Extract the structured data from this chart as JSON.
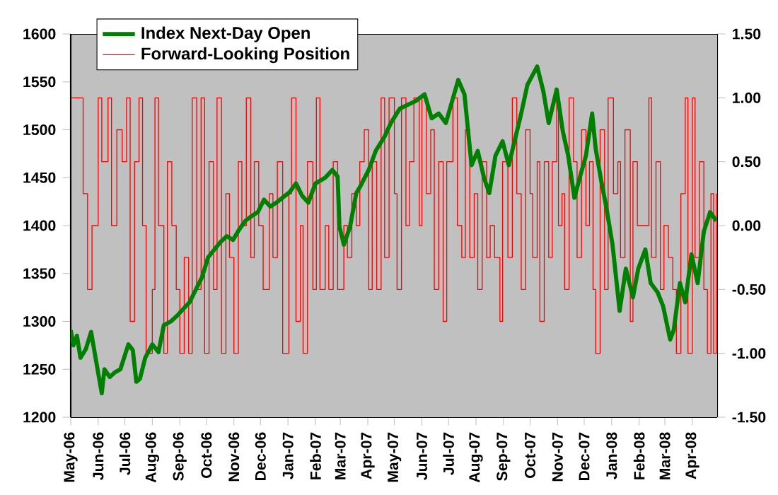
{
  "chart_data": {
    "type": "line",
    "xlim": [
      "2006-05-01",
      "2008-04-29"
    ],
    "xticks": [
      {
        "value": "2006-05-01",
        "label": "May-06"
      },
      {
        "value": "2006-06-01",
        "label": "Jun-06"
      },
      {
        "value": "2006-07-01",
        "label": "Jul-06"
      },
      {
        "value": "2006-08-01",
        "label": "Aug-06"
      },
      {
        "value": "2006-09-01",
        "label": "Sep-06"
      },
      {
        "value": "2006-10-01",
        "label": "Oct-06"
      },
      {
        "value": "2006-11-01",
        "label": "Nov-06"
      },
      {
        "value": "2006-12-01",
        "label": "Dec-06"
      },
      {
        "value": "2007-01-01",
        "label": "Jan-07"
      },
      {
        "value": "2007-02-01",
        "label": "Feb-07"
      },
      {
        "value": "2007-03-01",
        "label": "Mar-07"
      },
      {
        "value": "2007-04-01",
        "label": "Apr-07"
      },
      {
        "value": "2007-05-01",
        "label": "May-07"
      },
      {
        "value": "2007-06-01",
        "label": "Jun-07"
      },
      {
        "value": "2007-07-01",
        "label": "Jul-07"
      },
      {
        "value": "2007-08-01",
        "label": "Aug-07"
      },
      {
        "value": "2007-09-01",
        "label": "Sep-07"
      },
      {
        "value": "2007-10-01",
        "label": "Oct-07"
      },
      {
        "value": "2007-11-01",
        "label": "Nov-07"
      },
      {
        "value": "2007-12-01",
        "label": "Dec-07"
      },
      {
        "value": "2008-01-01",
        "label": "Jan-08"
      },
      {
        "value": "2008-02-01",
        "label": "Feb-08"
      },
      {
        "value": "2008-03-01",
        "label": "Mar-08"
      },
      {
        "value": "2008-04-01",
        "label": "Apr-08"
      }
    ],
    "ylim": [
      1200,
      1600
    ],
    "yticks": [
      1200,
      1250,
      1300,
      1350,
      1400,
      1450,
      1500,
      1550,
      1600
    ],
    "y2lim": [
      -1.5,
      1.5
    ],
    "y2ticks": [
      {
        "value": -1.5,
        "label": "-1.50"
      },
      {
        "value": -1,
        "label": "-1.00"
      },
      {
        "value": -0.5,
        "label": "-0.50"
      },
      {
        "value": 0,
        "label": "0.00"
      },
      {
        "value": 0.5,
        "label": "0.50"
      },
      {
        "value": 1,
        "label": "1.00"
      },
      {
        "value": 1.5,
        "label": "1.50"
      }
    ],
    "legend": "top left",
    "series": [
      {
        "name": "Index Next-Day Open",
        "color": "#008000",
        "axis": "y",
        "x": [
          "2006-05-01",
          "2006-05-04",
          "2006-05-08",
          "2006-05-12",
          "2006-05-18",
          "2006-05-24",
          "2006-05-29",
          "2006-06-05",
          "2006-06-08",
          "2006-06-14",
          "2006-06-20",
          "2006-06-26",
          "2006-07-05",
          "2006-07-10",
          "2006-07-14",
          "2006-07-18",
          "2006-07-24",
          "2006-08-01",
          "2006-08-08",
          "2006-08-14",
          "2006-08-22",
          "2006-08-29",
          "2006-09-05",
          "2006-09-12",
          "2006-09-19",
          "2006-09-26",
          "2006-10-03",
          "2006-10-10",
          "2006-10-17",
          "2006-10-24",
          "2006-10-31",
          "2006-11-07",
          "2006-11-14",
          "2006-11-21",
          "2006-11-28",
          "2006-12-05",
          "2006-12-12",
          "2006-12-19",
          "2006-12-27",
          "2007-01-03",
          "2007-01-10",
          "2007-01-17",
          "2007-01-24",
          "2007-02-01",
          "2007-02-12",
          "2007-02-20",
          "2007-02-26",
          "2007-02-28",
          "2007-03-05",
          "2007-03-12",
          "2007-03-19",
          "2007-03-23",
          "2007-04-02",
          "2007-04-10",
          "2007-04-20",
          "2007-04-27",
          "2007-05-07",
          "2007-05-16",
          "2007-05-25",
          "2007-06-04",
          "2007-06-12",
          "2007-06-20",
          "2007-06-28",
          "2007-07-12",
          "2007-07-19",
          "2007-07-27",
          "2007-08-03",
          "2007-08-10",
          "2007-08-16",
          "2007-08-23",
          "2007-08-31",
          "2007-09-07",
          "2007-09-14",
          "2007-09-21",
          "2007-09-28",
          "2007-10-09",
          "2007-10-16",
          "2007-10-22",
          "2007-10-31",
          "2007-11-07",
          "2007-11-13",
          "2007-11-20",
          "2007-11-26",
          "2007-12-03",
          "2007-12-10",
          "2007-12-14",
          "2007-12-20",
          "2007-12-26",
          "2008-01-02",
          "2008-01-10",
          "2008-01-17",
          "2008-01-25",
          "2008-01-31",
          "2008-02-08",
          "2008-02-14",
          "2008-02-22",
          "2008-02-28",
          "2008-03-07",
          "2008-03-11",
          "2008-03-18",
          "2008-03-24",
          "2008-03-31",
          "2008-04-07",
          "2008-04-14",
          "2008-04-21",
          "2008-04-28"
        ],
        "values": [
          1291,
          1275,
          1285,
          1262,
          1271,
          1289,
          1262,
          1225,
          1250,
          1242,
          1247,
          1250,
          1276,
          1270,
          1237,
          1240,
          1262,
          1276,
          1268,
          1296,
          1300,
          1306,
          1313,
          1320,
          1333,
          1346,
          1367,
          1375,
          1383,
          1389,
          1385,
          1396,
          1405,
          1410,
          1414,
          1427,
          1420,
          1424,
          1430,
          1435,
          1444,
          1431,
          1424,
          1444,
          1450,
          1458,
          1451,
          1399,
          1380,
          1399,
          1434,
          1440,
          1458,
          1478,
          1493,
          1507,
          1522,
          1526,
          1530,
          1537,
          1512,
          1517,
          1507,
          1552,
          1537,
          1463,
          1478,
          1450,
          1434,
          1473,
          1488,
          1463,
          1490,
          1517,
          1547,
          1566,
          1540,
          1507,
          1542,
          1498,
          1473,
          1429,
          1450,
          1473,
          1517,
          1480,
          1448,
          1419,
          1380,
          1311,
          1355,
          1325,
          1355,
          1375,
          1340,
          1330,
          1316,
          1281,
          1291,
          1340,
          1320,
          1370,
          1340,
          1394,
          1414,
          1405
        ]
      },
      {
        "name": "Forward-Looking Position",
        "color": "#ff0000",
        "type": "step",
        "axis": "y2",
        "x": [
          "2006-05-01",
          "2006-05-15",
          "2006-05-20",
          "2006-05-25",
          "2006-06-01",
          "2006-06-05",
          "2006-06-12",
          "2006-06-16",
          "2006-06-22",
          "2006-06-28",
          "2006-07-03",
          "2006-07-07",
          "2006-07-12",
          "2006-07-17",
          "2006-07-21",
          "2006-07-25",
          "2006-08-01",
          "2006-08-04",
          "2006-08-08",
          "2006-08-14",
          "2006-08-18",
          "2006-08-23",
          "2006-08-28",
          "2006-09-01",
          "2006-09-06",
          "2006-09-11",
          "2006-09-15",
          "2006-09-20",
          "2006-09-25",
          "2006-09-29",
          "2006-10-04",
          "2006-10-09",
          "2006-10-13",
          "2006-10-18",
          "2006-10-23",
          "2006-10-27",
          "2006-11-01",
          "2006-11-06",
          "2006-11-10",
          "2006-11-15",
          "2006-11-20",
          "2006-11-24",
          "2006-11-29",
          "2006-12-04",
          "2006-12-11",
          "2006-12-15",
          "2006-12-20",
          "2006-12-26",
          "2007-01-02",
          "2007-01-05",
          "2007-01-10",
          "2007-01-15",
          "2007-01-18",
          "2007-01-23",
          "2007-01-29",
          "2007-02-02",
          "2007-02-06",
          "2007-02-12",
          "2007-02-16",
          "2007-02-21",
          "2007-02-26",
          "2007-03-05",
          "2007-03-09",
          "2007-03-14",
          "2007-03-19",
          "2007-03-23",
          "2007-03-28",
          "2007-04-02",
          "2007-04-06",
          "2007-04-11",
          "2007-04-16",
          "2007-04-20",
          "2007-04-25",
          "2007-05-01",
          "2007-05-04",
          "2007-05-09",
          "2007-05-14",
          "2007-05-18",
          "2007-05-23",
          "2007-05-29",
          "2007-06-01",
          "2007-06-06",
          "2007-06-11",
          "2007-06-15",
          "2007-06-20",
          "2007-06-25",
          "2007-06-29",
          "2007-07-06",
          "2007-07-11",
          "2007-07-16",
          "2007-07-20",
          "2007-07-25",
          "2007-07-30",
          "2007-08-03",
          "2007-08-08",
          "2007-08-13",
          "2007-08-17",
          "2007-08-22",
          "2007-08-28",
          "2007-08-31",
          "2007-09-06",
          "2007-09-11",
          "2007-09-16",
          "2007-09-21",
          "2007-09-26",
          "2007-10-01",
          "2007-10-04",
          "2007-10-09",
          "2007-10-12",
          "2007-10-17",
          "2007-10-22",
          "2007-10-26",
          "2007-10-31",
          "2007-11-02",
          "2007-11-06",
          "2007-11-09",
          "2007-11-14",
          "2007-11-19",
          "2007-11-23",
          "2007-11-28",
          "2007-12-03",
          "2007-12-07",
          "2007-12-11",
          "2007-12-14",
          "2007-12-19",
          "2007-12-24",
          "2007-12-28",
          "2008-01-03",
          "2008-01-08",
          "2008-01-11",
          "2008-01-16",
          "2008-01-22",
          "2008-01-25",
          "2008-01-30",
          "2008-02-12",
          "2008-02-15",
          "2008-02-20",
          "2008-02-25",
          "2008-02-29",
          "2008-03-05",
          "2008-03-10",
          "2008-03-14",
          "2008-03-19",
          "2008-03-24",
          "2008-03-27",
          "2008-04-01",
          "2008-04-04",
          "2008-04-09",
          "2008-04-14",
          "2008-04-18",
          "2008-04-22",
          "2008-04-25",
          "2008-04-28"
        ],
        "values": [
          1,
          0.25,
          -0.5,
          0,
          1,
          0.5,
          1,
          0,
          0.75,
          0.5,
          1,
          -0.75,
          0.5,
          1,
          0,
          -1,
          -0.5,
          1,
          0,
          -1,
          0.5,
          0,
          -0.5,
          -1,
          -0.25,
          -1,
          1,
          -0.5,
          1,
          -1,
          0.5,
          -0.5,
          1,
          -1,
          0.25,
          -0.25,
          -1,
          0.5,
          0,
          1,
          -0.25,
          0.5,
          0,
          -0.5,
          0.25,
          -0.25,
          0.5,
          -1,
          0.25,
          1,
          -0.75,
          0,
          -1,
          0.5,
          -0.5,
          1,
          -0.5,
          0,
          -0.5,
          0.5,
          -0.5,
          0,
          -0.25,
          0.25,
          0,
          0.5,
          0.75,
          -0.5,
          0.5,
          -0.5,
          1,
          -0.25,
          1,
          0.25,
          -0.5,
          1,
          0,
          0.5,
          1,
          0,
          1,
          0.25,
          0.75,
          -0.5,
          0.5,
          -0.75,
          0.5,
          1,
          0,
          -0.25,
          0.75,
          -0.25,
          0.25,
          -0.5,
          0.5,
          -0.25,
          0,
          -0.25,
          -0.75,
          0.5,
          -0.25,
          1,
          0.25,
          -0.5,
          0.75,
          0.25,
          -0.25,
          0.5,
          -0.75,
          0.5,
          -0.25,
          0.5,
          1,
          0,
          0.25,
          -0.5,
          1,
          0.5,
          -0.25,
          0.75,
          0,
          0.5,
          -0.5,
          -1,
          0.75,
          -0.5,
          1,
          0.25,
          0.5,
          -0.25,
          0.75,
          -0.75,
          0.5,
          0,
          1,
          -0.25,
          0.5,
          -0.5,
          0,
          -0.25,
          -0.5,
          -1,
          0.25,
          1,
          -1,
          1,
          -0.25,
          0.5,
          -0.5,
          -1,
          0.25,
          -1,
          0.25
        ]
      }
    ]
  }
}
